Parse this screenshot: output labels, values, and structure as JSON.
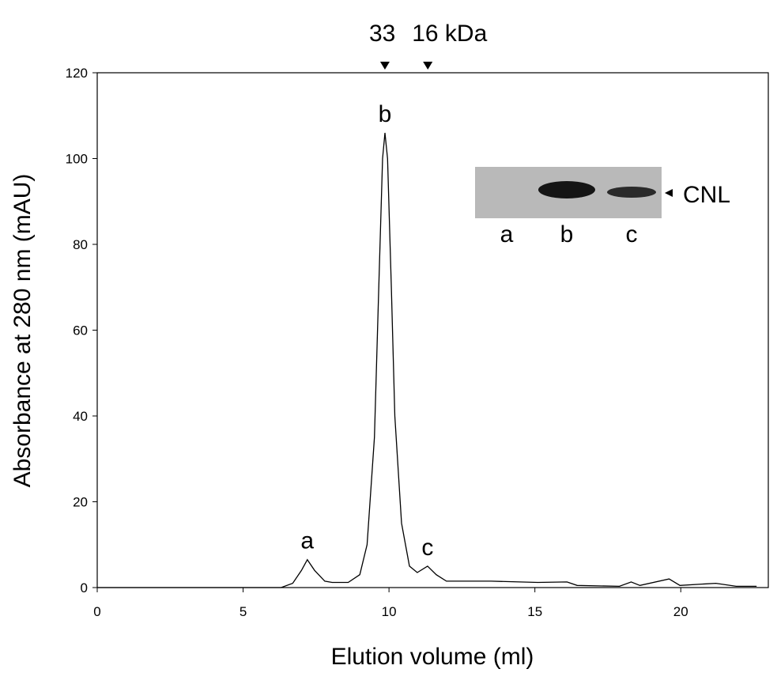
{
  "chart_data": {
    "type": "line",
    "x_label": "Elution volume (ml)",
    "y_label": "Absorbance at 280 nm (mAU)",
    "xlim": [
      0,
      23
    ],
    "xticks": [
      0,
      5,
      10,
      15,
      20
    ],
    "ylim": [
      0,
      120
    ],
    "yticks": [
      0,
      20,
      40,
      60,
      80,
      100,
      120
    ],
    "series": [
      {
        "color": "#000000",
        "x": [
          0,
          6.3,
          6.7,
          7.0,
          7.2,
          7.45,
          7.8,
          8.05,
          8.6,
          9.0,
          9.25,
          9.5,
          9.65,
          9.78,
          9.86,
          9.95,
          10.08,
          10.2,
          10.43,
          10.7,
          10.97,
          11.32,
          11.62,
          11.97,
          13.5,
          15.1,
          16.1,
          16.45,
          17.9,
          18.3,
          18.6,
          19.6,
          19.97,
          21.2,
          21.9,
          22.6
        ],
        "values": [
          0,
          0,
          1,
          4,
          6.5,
          4,
          1.5,
          1.2,
          1.2,
          3,
          10,
          35,
          70,
          100,
          106,
          100,
          70,
          40,
          15,
          5,
          3.5,
          5,
          3,
          1.5,
          1.5,
          1.2,
          1.3,
          0.5,
          0.3,
          1.3,
          0.5,
          2,
          0.5,
          1,
          0.3,
          0.3
        ]
      }
    ],
    "peak_labels": [
      {
        "x": 7.2,
        "y": 6.5,
        "text": "a"
      },
      {
        "x": 9.86,
        "y": 106,
        "text": "b"
      },
      {
        "x": 11.32,
        "y": 5,
        "text": "c"
      }
    ],
    "markers": [
      {
        "x": 9.86,
        "label": "33"
      },
      {
        "x": 11.33,
        "label": "16 kDa"
      }
    ],
    "inset": {
      "lanes": [
        "a",
        "b",
        "c"
      ],
      "band_label": "CNL"
    }
  }
}
